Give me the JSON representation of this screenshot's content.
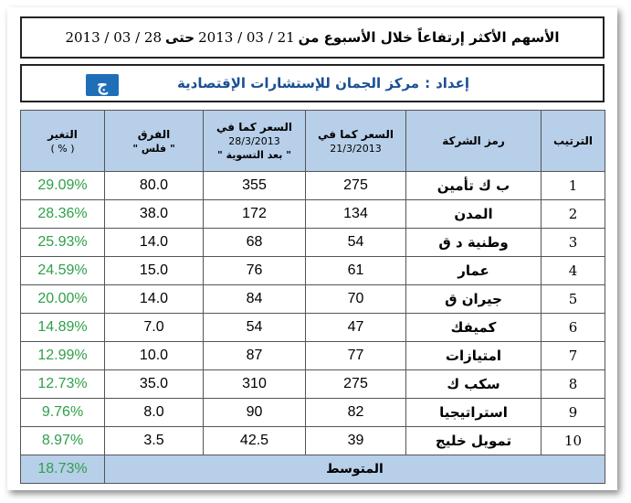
{
  "header": {
    "title_text": "الأسهم الأكثر إرتفاعاً خلال الأسبوع من",
    "title_from": "21 / 03 / 2013",
    "title_to_word": "حتى",
    "title_to": "28 / 03 / 2013"
  },
  "prepared": {
    "label": "إعداد",
    "sep": ":",
    "org": "مركز الجمان للإستشارات الإقتصادية",
    "logo_glyph": "ج"
  },
  "table": {
    "headers": {
      "rank": "الترتيب",
      "symbol": "رمز الشركة",
      "price1_title": "السعر كما في",
      "price1_date": "21/3/2013",
      "price2_title": "السعر كما في",
      "price2_date": "28/3/2013",
      "price2_note": "\" بعد التسوية \"",
      "diff_title": "الفرق",
      "diff_unit": "\" فلس \"",
      "change_title": "التغير",
      "change_unit": "( % )"
    },
    "rows": [
      {
        "rank": "1",
        "company": "ب ك تأمين",
        "p1": "275",
        "p2": "355",
        "diff": "80.0",
        "change": "29.09%"
      },
      {
        "rank": "2",
        "company": "المدن",
        "p1": "134",
        "p2": "172",
        "diff": "38.0",
        "change": "28.36%"
      },
      {
        "rank": "3",
        "company": "وطنية د ق",
        "p1": "54",
        "p2": "68",
        "diff": "14.0",
        "change": "25.93%"
      },
      {
        "rank": "4",
        "company": "عمار",
        "p1": "61",
        "p2": "76",
        "diff": "15.0",
        "change": "24.59%"
      },
      {
        "rank": "5",
        "company": "جيران ق",
        "p1": "70",
        "p2": "84",
        "diff": "14.0",
        "change": "20.00%"
      },
      {
        "rank": "6",
        "company": "كميفك",
        "p1": "47",
        "p2": "54",
        "diff": "7.0",
        "change": "14.89%"
      },
      {
        "rank": "7",
        "company": "امتيازات",
        "p1": "77",
        "p2": "87",
        "diff": "10.0",
        "change": "12.99%"
      },
      {
        "rank": "8",
        "company": "سكب ك",
        "p1": "275",
        "p2": "310",
        "diff": "35.0",
        "change": "12.73%"
      },
      {
        "rank": "9",
        "company": "استراتيجيا",
        "p1": "82",
        "p2": "90",
        "diff": "8.0",
        "change": "9.76%"
      },
      {
        "rank": "10",
        "company": "تمويل خليج",
        "p1": "39",
        "p2": "42.5",
        "diff": "3.5",
        "change": "8.97%"
      }
    ],
    "average": {
      "label": "المتوسط",
      "change": "18.73%"
    }
  },
  "colors": {
    "header_bg": "#b7cfe9",
    "positive": "#2ea04a",
    "brand": "#1a4f94"
  }
}
